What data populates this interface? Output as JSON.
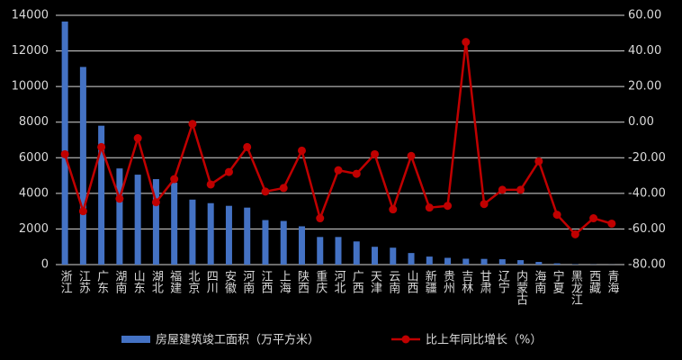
{
  "chart_data": {
    "type": "combo",
    "categories": [
      "浙江",
      "江苏",
      "广东",
      "湖南",
      "山东",
      "湖北",
      "福建",
      "北京",
      "四川",
      "安徽",
      "河南",
      "江西",
      "上海",
      "陕西",
      "重庆",
      "河北",
      "广西",
      "天津",
      "云南",
      "山西",
      "新疆",
      "贵州",
      "吉林",
      "甘肃",
      "辽宁",
      "内蒙古",
      "海南",
      "宁夏",
      "黑龙江",
      "西藏",
      "青海"
    ],
    "series": [
      {
        "name": "房屋建筑竣工面积（万平方米）",
        "type": "bar",
        "color": "#4472c4",
        "values": [
          13650,
          11100,
          7800,
          5400,
          5050,
          4800,
          4600,
          3650,
          3450,
          3300,
          3200,
          2500,
          2450,
          2150,
          1550,
          1550,
          1300,
          1000,
          950,
          650,
          450,
          380,
          330,
          320,
          300,
          250,
          150,
          70,
          20,
          10,
          5
        ]
      },
      {
        "name": "比上年同比增长（%）",
        "type": "line",
        "color": "#c00000",
        "axis": "y2",
        "values": [
          -18,
          -50,
          -14,
          -43,
          -9,
          -45,
          -32,
          -1,
          -35,
          -28,
          -14,
          -39,
          -37,
          -16,
          -54,
          -27,
          -29,
          -18,
          -49,
          -19,
          -48,
          -47,
          45,
          -46,
          -38,
          -38,
          -22,
          -52,
          -63,
          -54,
          -57
        ]
      }
    ],
    "ylim": [
      0,
      14000
    ],
    "yticks": [
      0,
      2000,
      4000,
      6000,
      8000,
      10000,
      12000,
      14000
    ],
    "y2lim": [
      -80,
      60
    ],
    "y2ticks": [
      {
        "value": -80,
        "label": "-80.00"
      },
      {
        "value": -60,
        "label": "-60.00"
      },
      {
        "value": -40,
        "label": "-40.00"
      },
      {
        "value": -20,
        "label": "-20.00"
      },
      {
        "value": 0,
        "label": "0.00"
      },
      {
        "value": 20,
        "label": "20.00"
      },
      {
        "value": 40,
        "label": "40.00"
      },
      {
        "value": 60,
        "label": "60.00"
      }
    ],
    "grid": true
  }
}
